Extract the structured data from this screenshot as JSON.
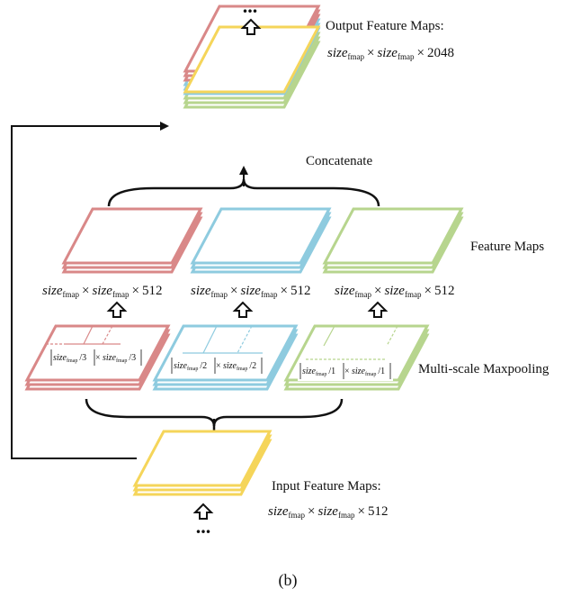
{
  "labels": {
    "output_title": "Output Feature Maps:",
    "concatenate": "Concatenate",
    "feature_maps": "Feature Maps",
    "multiscale": "Multi-scale Maxpooling",
    "input_title": "Input Feature Maps:",
    "caption": "(b)",
    "dots_top": "...",
    "dots_bottom": "..."
  },
  "math": {
    "size": "size",
    "sub": "fmap",
    "times": "×",
    "output_channels": "2048",
    "feature_channels": "512",
    "input_channels": "512"
  },
  "pool": {
    "size": "size",
    "sub": "fmap",
    "times": "×",
    "div_red": "/3",
    "div_blue": "/2",
    "div_green": "/1"
  },
  "colors": {
    "yellow": "#f5d55a",
    "red": "#d98888",
    "blue": "#8ecbdf",
    "green": "#b7d58e",
    "line": "#111111"
  }
}
